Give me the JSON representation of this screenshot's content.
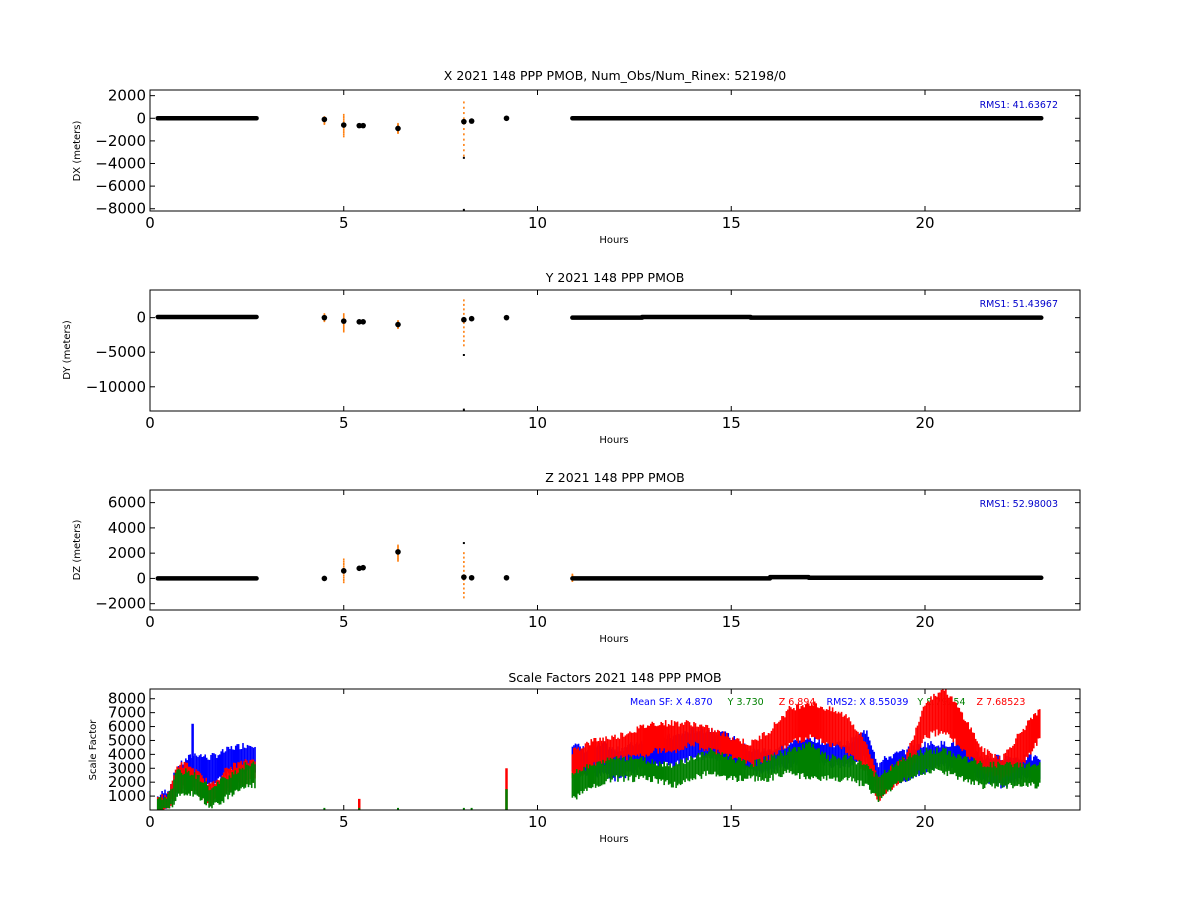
{
  "colors": {
    "background": "#ffffff",
    "axis": "#000000",
    "black_points": "#000000",
    "orange_points": "#ff7f0e",
    "blue_points": "#0000ff",
    "rms_text": "#0000cc",
    "sf_blue": "#0000ff",
    "sf_green": "#008000",
    "sf_red": "#ff0000"
  },
  "chart_data": [
    {
      "type": "scatter",
      "title": "X 2021 148 PPP  PMOB, Num_Obs/Num_Rinex: 52198/0",
      "xlabel": "Hours",
      "ylabel": "DX (meters)",
      "xlim": [
        0,
        24
      ],
      "ylim": [
        -8200,
        2500
      ],
      "xticks": [
        0,
        5,
        10,
        15,
        20
      ],
      "yticks": [
        -8000,
        -6000,
        -4000,
        -2000,
        0,
        2000
      ],
      "annotation": "RMS1: 41.63672",
      "segments": [
        {
          "x0": 0.2,
          "x1": 2.75,
          "y": 0
        },
        {
          "x0": 10.9,
          "x1": 23.0,
          "y": 0
        }
      ],
      "points": [
        {
          "x": 4.5,
          "y": -100
        },
        {
          "x": 5.0,
          "y": -600
        },
        {
          "x": 5.4,
          "y": -650
        },
        {
          "x": 5.5,
          "y": -650
        },
        {
          "x": 6.4,
          "y": -900
        },
        {
          "x": 8.1,
          "y": -300
        },
        {
          "x": 8.3,
          "y": -250
        },
        {
          "x": 9.2,
          "y": 0
        }
      ],
      "spikes": [
        {
          "x": 4.5,
          "y0": -500,
          "y1": 100
        },
        {
          "x": 5.0,
          "y0": -1600,
          "y1": 300
        },
        {
          "x": 6.4,
          "y0": -1300,
          "y1": -500
        },
        {
          "x": 8.1,
          "y0": -3300,
          "y1": 1400
        }
      ],
      "outliers": [
        {
          "x": 8.1,
          "y": -3500
        },
        {
          "x": 8.1,
          "y": -8100
        }
      ]
    },
    {
      "type": "scatter",
      "title": "Y 2021 148 PPP  PMOB",
      "xlabel": "Hours",
      "ylabel": "DY (meters)",
      "xlim": [
        0,
        24
      ],
      "ylim": [
        -13500,
        4000
      ],
      "xticks": [
        0,
        5,
        10,
        15,
        20
      ],
      "yticks": [
        -10000,
        -5000,
        0
      ],
      "annotation": "RMS1: 51.43967",
      "segments": [
        {
          "x0": 0.2,
          "x1": 2.75,
          "y": 100
        },
        {
          "x0": 10.9,
          "x1": 12.7,
          "y": 0
        },
        {
          "x0": 12.7,
          "x1": 15.5,
          "y": 100
        },
        {
          "x0": 15.5,
          "x1": 23.0,
          "y": 0
        }
      ],
      "points": [
        {
          "x": 4.5,
          "y": 0
        },
        {
          "x": 5.0,
          "y": -500
        },
        {
          "x": 5.4,
          "y": -600
        },
        {
          "x": 5.5,
          "y": -600
        },
        {
          "x": 6.4,
          "y": -1000
        },
        {
          "x": 8.1,
          "y": -300
        },
        {
          "x": 8.3,
          "y": -150
        },
        {
          "x": 9.2,
          "y": 0
        }
      ],
      "spikes": [
        {
          "x": 4.5,
          "y0": -500,
          "y1": 500
        },
        {
          "x": 5.0,
          "y0": -2000,
          "y1": 500
        },
        {
          "x": 6.4,
          "y0": -1500,
          "y1": -500
        },
        {
          "x": 8.1,
          "y0": -4000,
          "y1": 2500
        }
      ],
      "outliers": [
        {
          "x": 8.1,
          "y": -5400
        },
        {
          "x": 8.1,
          "y": -13300
        }
      ]
    },
    {
      "type": "scatter",
      "title": "Z 2021 148 PPP  PMOB",
      "xlabel": "Hours",
      "ylabel": "DZ (meters)",
      "xlim": [
        0,
        24
      ],
      "ylim": [
        -2500,
        7000
      ],
      "xticks": [
        0,
        5,
        10,
        15,
        20
      ],
      "yticks": [
        -2000,
        0,
        2000,
        4000,
        6000
      ],
      "annotation": "RMS1: 52.98003",
      "segments": [
        {
          "x0": 0.2,
          "x1": 2.75,
          "y": 0
        },
        {
          "x0": 10.9,
          "x1": 16.0,
          "y": 0
        },
        {
          "x0": 16.0,
          "x1": 17.0,
          "y": 100
        },
        {
          "x0": 17.0,
          "x1": 23.0,
          "y": 50
        }
      ],
      "points": [
        {
          "x": 4.5,
          "y": 0
        },
        {
          "x": 5.0,
          "y": 600
        },
        {
          "x": 5.4,
          "y": 800
        },
        {
          "x": 5.5,
          "y": 850
        },
        {
          "x": 6.4,
          "y": 2100
        },
        {
          "x": 8.1,
          "y": 100
        },
        {
          "x": 8.3,
          "y": 50
        },
        {
          "x": 9.2,
          "y": 50
        }
      ],
      "spikes": [
        {
          "x": 5.0,
          "y0": -300,
          "y1": 1500
        },
        {
          "x": 6.4,
          "y0": 1400,
          "y1": 2600
        },
        {
          "x": 8.1,
          "y0": -1500,
          "y1": 2000
        },
        {
          "x": 10.9,
          "y0": -200,
          "y1": 300
        }
      ],
      "outliers": [
        {
          "x": 8.1,
          "y": 2800
        }
      ]
    },
    {
      "type": "scatter",
      "title": "Scale Factors 2021 148 PPP  PMOB",
      "xlabel": "Hours",
      "ylabel": "Scale Factor",
      "xlim": [
        0,
        24
      ],
      "ylim": [
        0,
        8700
      ],
      "xticks": [
        0,
        5,
        10,
        15,
        20
      ],
      "yticks": [
        1000,
        2000,
        3000,
        4000,
        5000,
        6000,
        7000,
        8000
      ],
      "annotation_parts": [
        {
          "text": "Mean SF: X   4.870",
          "color": "blue"
        },
        {
          "text": "Y   3.730",
          "color": "green"
        },
        {
          "text": "Z   6.894",
          "color": "red"
        },
        {
          "text": "RMS2: X  8.55039",
          "color": "blue"
        },
        {
          "text": "Y  8.79254",
          "color": "green"
        },
        {
          "text": "Z  7.68523",
          "color": "red"
        }
      ],
      "series": [
        {
          "color": "blue",
          "bands": [
            [
              0.2,
              200,
              700
            ],
            [
              0.5,
              500,
              1300
            ],
            [
              0.7,
              1500,
              2800
            ],
            [
              1.0,
              2500,
              3500
            ],
            [
              1.2,
              2500,
              3800
            ],
            [
              1.5,
              2000,
              3500
            ],
            [
              1.8,
              2500,
              3800
            ],
            [
              2.1,
              3000,
              4200
            ],
            [
              2.4,
              3000,
              4400
            ],
            [
              2.75,
              3000,
              4500
            ],
            [
              10.9,
              3000,
              4500
            ],
            [
              11.3,
              2500,
              4000
            ],
            [
              11.7,
              3000,
              4500
            ],
            [
              12.0,
              2500,
              4000
            ],
            [
              12.5,
              3000,
              4500
            ],
            [
              13.0,
              3500,
              5000
            ],
            [
              13.5,
              3500,
              5000
            ],
            [
              14.0,
              4000,
              5500
            ],
            [
              14.5,
              4000,
              5500
            ],
            [
              15.0,
              3500,
              5000
            ],
            [
              15.5,
              3000,
              4000
            ],
            [
              16.0,
              3000,
              4000
            ],
            [
              16.5,
              3500,
              4500
            ],
            [
              17.0,
              3500,
              5000
            ],
            [
              17.5,
              3500,
              4500
            ],
            [
              18.0,
              3500,
              4500
            ],
            [
              18.5,
              4000,
              5500
            ],
            [
              18.8,
              1500,
              3000
            ],
            [
              19.0,
              2000,
              3500
            ],
            [
              19.5,
              2500,
              4000
            ],
            [
              20.0,
              3000,
              4500
            ],
            [
              20.5,
              3500,
              4500
            ],
            [
              21.0,
              3000,
              4500
            ],
            [
              21.5,
              2500,
              3500
            ],
            [
              22.0,
              2000,
              3500
            ],
            [
              22.5,
              2500,
              3500
            ],
            [
              23.0,
              2500,
              3500
            ]
          ]
        },
        {
          "color": "red",
          "bands": [
            [
              0.2,
              100,
              500
            ],
            [
              0.5,
              400,
              1000
            ],
            [
              0.7,
              1500,
              3000
            ],
            [
              1.0,
              2000,
              3000
            ],
            [
              1.3,
              1200,
              2200
            ],
            [
              1.6,
              600,
              1500
            ],
            [
              1.9,
              1500,
              2500
            ],
            [
              2.2,
              2000,
              3000
            ],
            [
              2.5,
              2200,
              3200
            ],
            [
              2.75,
              2500,
              3500
            ],
            [
              10.9,
              2500,
              4000
            ],
            [
              11.5,
              3500,
              4800
            ],
            [
              12.0,
              4000,
              5000
            ],
            [
              12.5,
              4000,
              5500
            ],
            [
              13.0,
              4500,
              6000
            ],
            [
              13.5,
              4500,
              6000
            ],
            [
              14.0,
              5000,
              6000
            ],
            [
              14.5,
              4500,
              5500
            ],
            [
              15.0,
              4000,
              5000
            ],
            [
              15.5,
              3500,
              4500
            ],
            [
              16.0,
              4000,
              5500
            ],
            [
              16.5,
              5000,
              7000
            ],
            [
              17.0,
              5500,
              7500
            ],
            [
              17.5,
              5000,
              7000
            ],
            [
              18.0,
              4500,
              6500
            ],
            [
              18.5,
              3000,
              4500
            ],
            [
              18.8,
              1000,
              2000
            ],
            [
              19.0,
              1500,
              2500
            ],
            [
              19.5,
              2500,
              3500
            ],
            [
              20.0,
              5500,
              7500
            ],
            [
              20.5,
              6000,
              8500
            ],
            [
              21.0,
              4500,
              6500
            ],
            [
              21.5,
              3000,
              4000
            ],
            [
              22.0,
              2500,
              3500
            ],
            [
              22.5,
              3500,
              5500
            ],
            [
              23.0,
              5500,
              7000
            ]
          ]
        },
        {
          "color": "green",
          "bands": [
            [
              0.2,
              100,
              400
            ],
            [
              0.5,
              300,
              900
            ],
            [
              0.7,
              1200,
              2500
            ],
            [
              1.0,
              1500,
              2500
            ],
            [
              1.3,
              1000,
              2000
            ],
            [
              1.6,
              500,
              1200
            ],
            [
              1.9,
              1000,
              2000
            ],
            [
              2.2,
              1500,
              2500
            ],
            [
              2.5,
              2000,
              3000
            ],
            [
              2.75,
              2000,
              3000
            ],
            [
              10.9,
              1000,
              2500
            ],
            [
              11.5,
              2000,
              3000
            ],
            [
              12.0,
              2500,
              3500
            ],
            [
              12.5,
              2500,
              3500
            ],
            [
              13.0,
              2500,
              3200
            ],
            [
              13.5,
              2000,
              3000
            ],
            [
              14.0,
              2500,
              3500
            ],
            [
              14.5,
              3000,
              4000
            ],
            [
              15.0,
              2500,
              3500
            ],
            [
              15.5,
              2500,
              3000
            ],
            [
              16.0,
              2500,
              3500
            ],
            [
              16.5,
              3000,
              4000
            ],
            [
              17.0,
              2500,
              4500
            ],
            [
              17.5,
              2500,
              3500
            ],
            [
              18.0,
              2500,
              3500
            ],
            [
              18.5,
              2000,
              3000
            ],
            [
              18.8,
              1000,
              2000
            ],
            [
              19.0,
              1500,
              2500
            ],
            [
              19.5,
              2500,
              3500
            ],
            [
              20.0,
              3000,
              4000
            ],
            [
              20.5,
              3000,
              4000
            ],
            [
              21.0,
              2500,
              3500
            ],
            [
              21.5,
              2000,
              3000
            ],
            [
              22.0,
              2000,
              3000
            ],
            [
              22.5,
              2000,
              3000
            ],
            [
              23.0,
              2000,
              3000
            ]
          ]
        }
      ],
      "spikes": [
        {
          "x": 9.2,
          "y0": 0,
          "y1": 3000,
          "color": "red"
        },
        {
          "x": 9.2,
          "y0": 0,
          "y1": 1500,
          "color": "green"
        },
        {
          "x": 1.1,
          "y0": 3000,
          "y1": 6200,
          "color": "blue"
        },
        {
          "x": 5.4,
          "y0": 0,
          "y1": 800,
          "color": "red"
        }
      ]
    }
  ]
}
